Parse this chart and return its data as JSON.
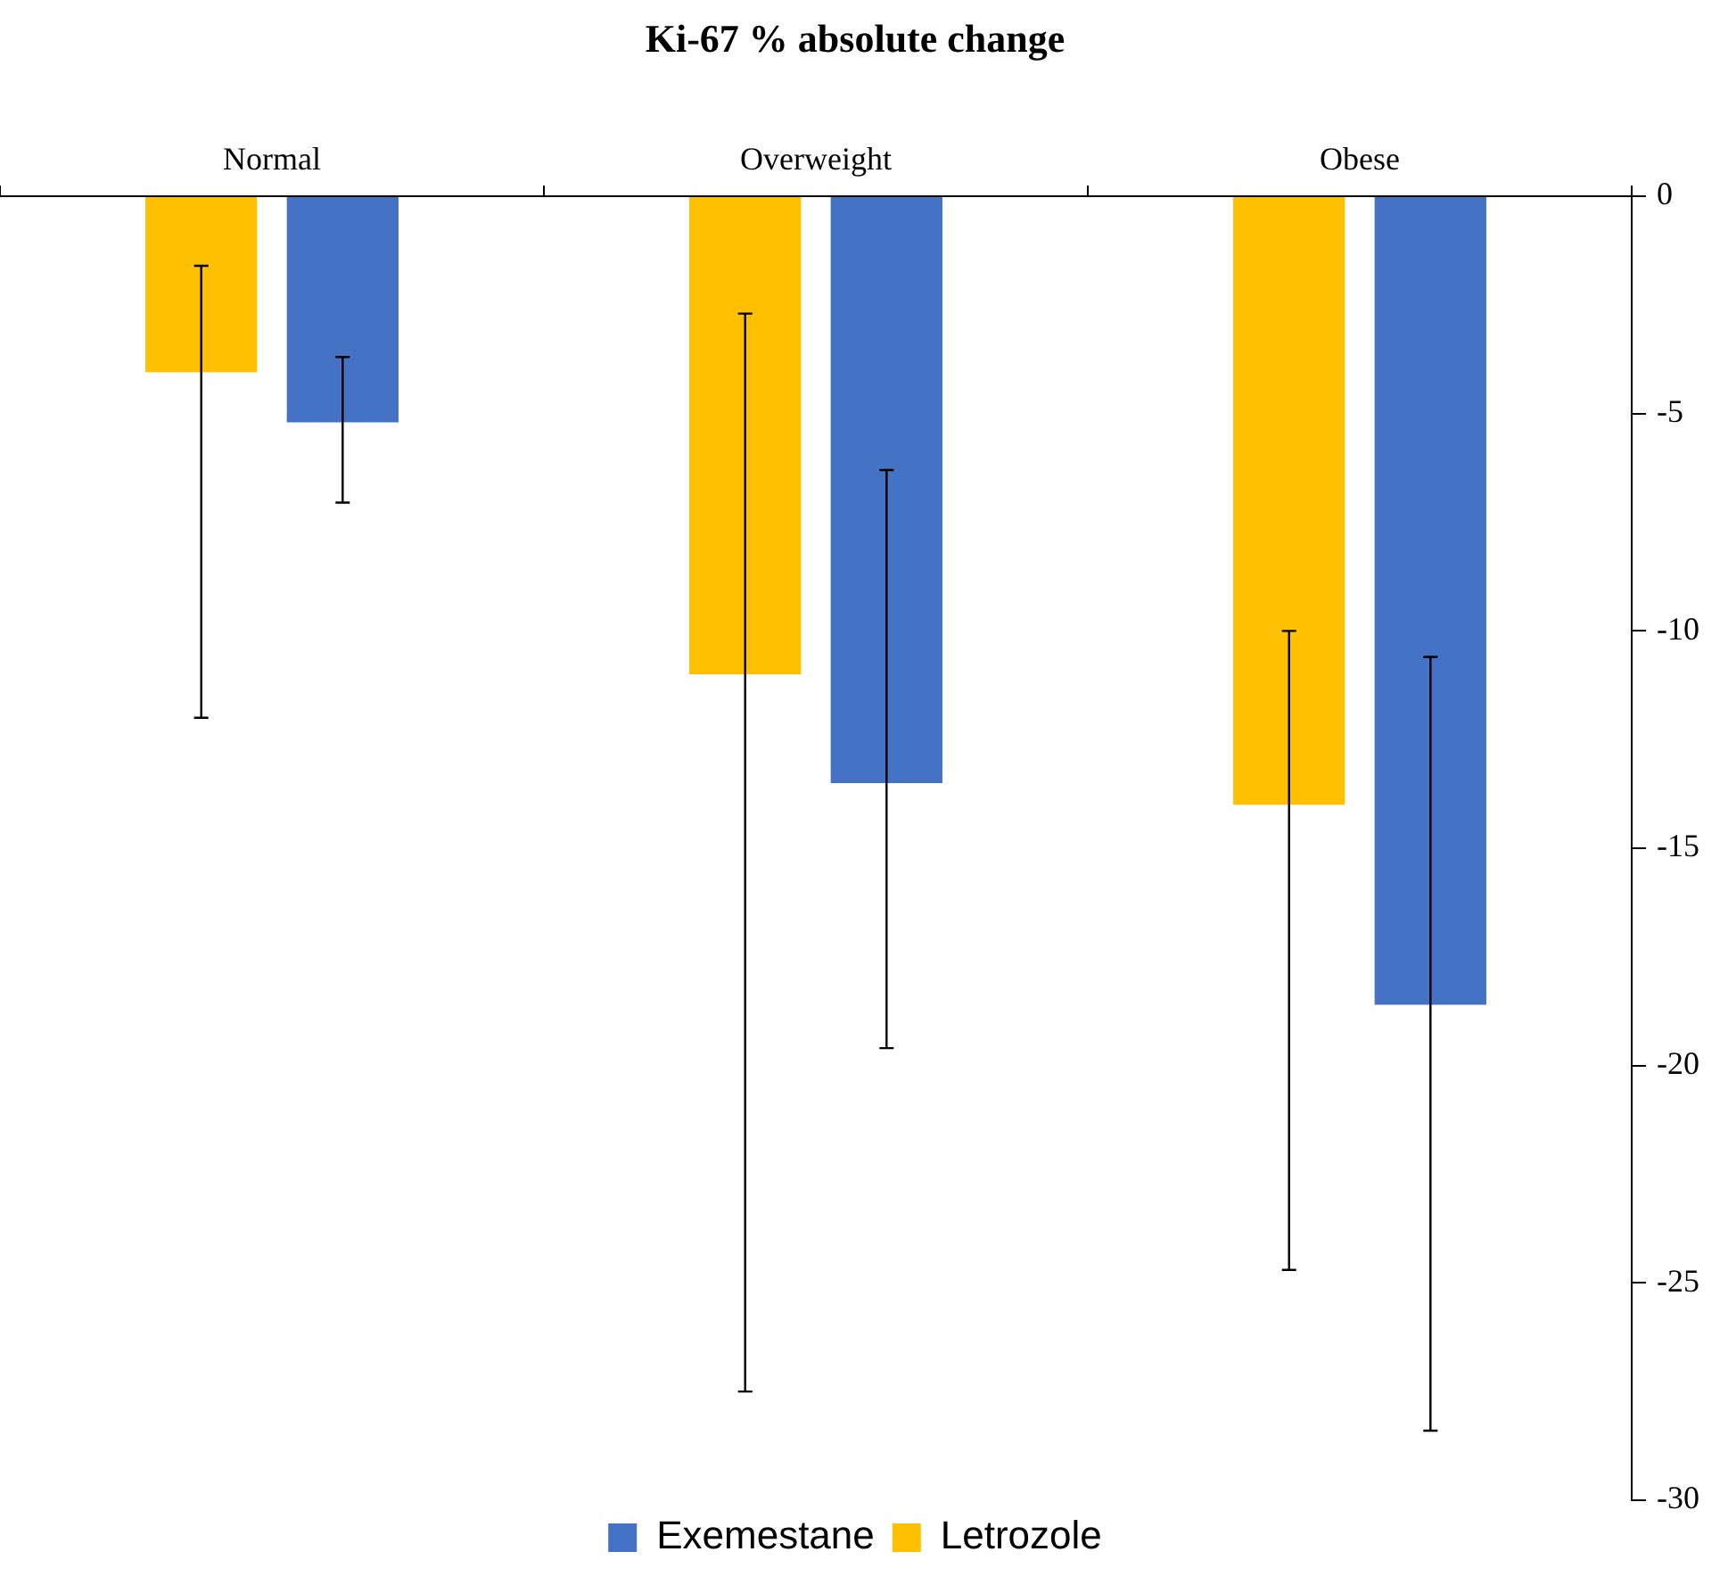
{
  "chart_data": {
    "type": "bar",
    "title": "Ki-67 % absolute change",
    "categories": [
      "Normal",
      "Overweight",
      "Obese"
    ],
    "series": [
      {
        "name": "Letrozole",
        "color": "#ffc000",
        "values": [
          -4.05,
          -11.0,
          -14.0
        ],
        "errors": [
          [
            -12.0,
            -1.6
          ],
          [
            -27.5,
            -2.7
          ],
          [
            -24.7,
            -10.0
          ]
        ]
      },
      {
        "name": "Exemestane",
        "color": "#4472c4",
        "values": [
          -5.2,
          -13.5,
          -18.6
        ],
        "errors": [
          [
            -7.05,
            -3.7
          ],
          [
            -19.6,
            -6.3
          ],
          [
            -28.4,
            -10.6
          ]
        ]
      }
    ],
    "ylim": [
      -30,
      0
    ],
    "yticks": [
      0,
      -5,
      -10,
      -15,
      -20,
      -25,
      -30
    ],
    "grid": false,
    "legend": "bottom"
  }
}
